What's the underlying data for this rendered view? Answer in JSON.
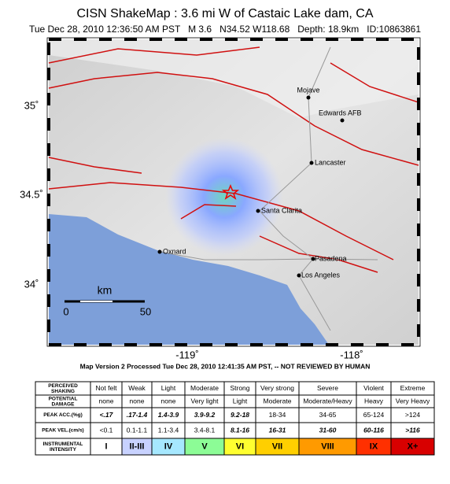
{
  "header": {
    "title": "CISN ShakeMap : 3.6 mi W of Castaic Lake dam, CA",
    "subtitle": "Tue Dec 28, 2010 12:36:50 AM PST   M 3.6   N34.52 W118.68   Depth: 18.9km   ID:10863861"
  },
  "map": {
    "lat_labels": [
      "35˚",
      "34.5˚",
      "34˚"
    ],
    "lon_labels": [
      "-119˚",
      "-118˚"
    ],
    "cities": [
      "Mojave",
      "Edwards AFB",
      "Lancaster",
      "Santa Clarita",
      "Oxnard",
      "Pasadena",
      "Los Angeles"
    ],
    "scale": {
      "unit": "km",
      "start": "0",
      "end": "50"
    }
  },
  "footer": {
    "note": "Map Version 2 Processed Tue Dec 28, 2010 12:41:35 AM PST, -- NOT REVIEWED BY HUMAN"
  },
  "table": {
    "rows": [
      [
        "PERCEIVED SHAKING",
        "Not felt",
        "Weak",
        "Light",
        "Moderate",
        "Strong",
        "Very strong",
        "Severe",
        "Violent",
        "Extreme"
      ],
      [
        "POTENTIAL DAMAGE",
        "none",
        "none",
        "none",
        "Very light",
        "Light",
        "Moderate",
        "Moderate/Heavy",
        "Heavy",
        "Very Heavy"
      ],
      [
        "PEAK ACC.(%g)",
        "<.17",
        ".17-1.4",
        "1.4-3.9",
        "3.9-9.2",
        "9.2-18",
        "18-34",
        "34-65",
        "65-124",
        ">124"
      ],
      [
        "PEAK VEL.(cm/s)",
        "<0.1",
        "0.1-1.1",
        "1.1-3.4",
        "3.4-8.1",
        "8.1-16",
        "16-31",
        "31-60",
        "60-116",
        ">116"
      ],
      [
        "INSTRUMENTAL INTENSITY",
        "I",
        "II-III",
        "IV",
        "V",
        "VI",
        "VII",
        "VIII",
        "IX",
        "X+"
      ]
    ]
  }
}
